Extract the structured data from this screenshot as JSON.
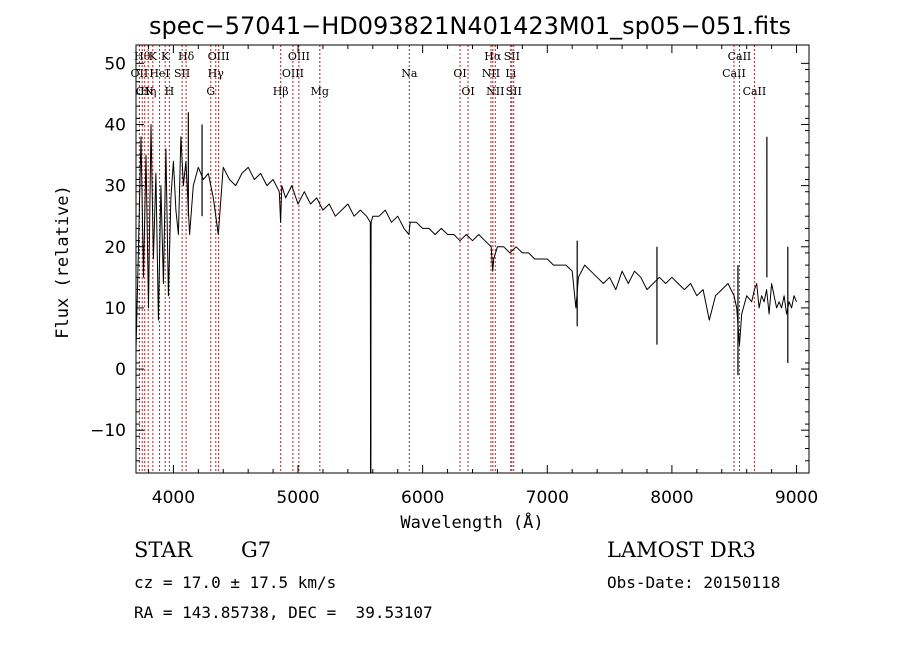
{
  "chart_data": {
    "type": "line",
    "title": "spec−57041−HD093821N401423M01_sp05−051.fits",
    "xlabel": "Wavelength (Å)",
    "ylabel": "Flux (relative)",
    "xlim": [
      3700,
      9100
    ],
    "ylim": [
      -17,
      53
    ],
    "grid": false,
    "x_ticks": [
      {
        "value": 4000,
        "label": "4000"
      },
      {
        "value": 5000,
        "label": "5000"
      },
      {
        "value": 6000,
        "label": "6000"
      },
      {
        "value": 7000,
        "label": "7000"
      },
      {
        "value": 8000,
        "label": "8000"
      },
      {
        "value": 9000,
        "label": "9000"
      }
    ],
    "y_ticks": [
      {
        "value": 50,
        "label": "50"
      },
      {
        "value": 40,
        "label": "40"
      },
      {
        "value": 30,
        "label": "30"
      },
      {
        "value": 20,
        "label": "20"
      },
      {
        "value": 10,
        "label": "10"
      },
      {
        "value": 0,
        "label": "0"
      },
      {
        "value": -10,
        "label": "−10"
      }
    ],
    "series": [
      {
        "name": "flux",
        "color": "#000000",
        "x": [
          3700,
          3720,
          3740,
          3760,
          3780,
          3800,
          3820,
          3840,
          3860,
          3880,
          3900,
          3920,
          3940,
          3960,
          3980,
          4000,
          4020,
          4040,
          4060,
          4080,
          4100,
          4130,
          4160,
          4200,
          4240,
          4280,
          4320,
          4360,
          4400,
          4450,
          4500,
          4550,
          4600,
          4650,
          4700,
          4750,
          4800,
          4850,
          4860,
          4870,
          4900,
          4950,
          5000,
          5050,
          5100,
          5150,
          5200,
          5250,
          5300,
          5350,
          5400,
          5450,
          5500,
          5550,
          5580,
          5582,
          5584,
          5586,
          5600,
          5650,
          5700,
          5750,
          5800,
          5850,
          5890,
          5900,
          5950,
          6000,
          6050,
          6100,
          6150,
          6200,
          6250,
          6300,
          6350,
          6400,
          6450,
          6500,
          6550,
          6562,
          6570,
          6600,
          6650,
          6700,
          6750,
          6800,
          6850,
          6900,
          6950,
          7000,
          7050,
          7100,
          7150,
          7200,
          7230,
          7250,
          7300,
          7350,
          7400,
          7450,
          7500,
          7550,
          7600,
          7650,
          7700,
          7750,
          7800,
          7850,
          7900,
          7950,
          8000,
          8050,
          8100,
          8150,
          8200,
          8250,
          8300,
          8350,
          8400,
          8450,
          8498,
          8520,
          8542,
          8560,
          8600,
          8640,
          8662,
          8680,
          8700,
          8720,
          8740,
          8760,
          8780,
          8800,
          8820,
          8840,
          8860,
          8880,
          8900,
          8920,
          8940,
          8960,
          8980,
          9000
        ],
        "y": [
          3,
          20,
          38,
          15,
          35,
          10,
          40,
          18,
          32,
          8,
          30,
          14,
          36,
          12,
          28,
          34,
          26,
          22,
          38,
          30,
          34,
          22,
          30,
          33,
          31,
          32,
          28,
          22,
          33,
          31,
          30,
          32,
          33,
          31,
          32,
          30,
          31,
          29,
          24,
          30,
          28,
          30,
          27,
          29,
          27,
          28,
          26,
          27,
          25,
          26,
          27,
          25,
          26,
          25,
          24,
          -17,
          -17,
          24,
          25,
          25,
          26,
          24,
          25,
          23,
          22,
          24,
          24,
          23,
          23,
          22,
          23,
          22,
          22,
          21,
          22,
          21,
          22,
          21,
          20,
          16,
          18,
          20,
          20,
          19,
          20,
          19,
          19,
          18,
          18,
          18,
          17,
          17,
          17,
          16,
          10,
          15,
          17,
          16,
          15,
          14,
          15,
          13,
          16,
          14,
          16,
          15,
          13,
          14,
          15,
          14,
          15,
          14,
          13,
          14,
          12,
          13,
          8,
          12,
          13,
          14,
          12,
          10,
          4,
          9,
          12,
          11,
          13,
          14,
          10,
          12,
          11,
          13,
          9,
          14,
          12,
          10,
          11,
          10,
          12,
          9,
          11,
          10,
          12,
          11
        ]
      },
      {
        "name": "spikes",
        "color": "#000000",
        "segments": [
          {
            "x": 4120,
            "y1": 25,
            "y2": 42
          },
          {
            "x": 4230,
            "y1": 25,
            "y2": 40
          },
          {
            "x": 5583,
            "y1": -17,
            "y2": 24
          },
          {
            "x": 7240,
            "y1": 7,
            "y2": 21
          },
          {
            "x": 7880,
            "y1": 4,
            "y2": 20
          },
          {
            "x": 8530,
            "y1": -1,
            "y2": 17
          },
          {
            "x": 8762,
            "y1": 15,
            "y2": 38
          },
          {
            "x": 8930,
            "y1": 1,
            "y2": 20
          }
        ]
      }
    ],
    "line_markers": [
      {
        "x": 3727,
        "label": "OII",
        "row": 2
      },
      {
        "x": 3750,
        "label": "Hθ",
        "row": 0
      },
      {
        "x": 3770,
        "label": "CN",
        "row": 3
      },
      {
        "x": 3798,
        "label": "Hη",
        "row": 3
      },
      {
        "x": 3835,
        "label": "K",
        "row": 0
      },
      {
        "x": 3889,
        "label": "HeI",
        "row": 1
      },
      {
        "x": 3934,
        "label": "K",
        "row": 0
      },
      {
        "x": 3968,
        "label": "H",
        "row": 3
      },
      {
        "x": 4070,
        "label": "SII",
        "row": 1
      },
      {
        "x": 4102,
        "label": "Hδ",
        "row": 0
      },
      {
        "x": 4300,
        "label": "G",
        "row": 3
      },
      {
        "x": 4340,
        "label": "Hγ",
        "row": 2
      },
      {
        "x": 4363,
        "label": "OIII",
        "row": 0
      },
      {
        "x": 4861,
        "label": "Hβ",
        "row": 3
      },
      {
        "x": 4959,
        "label": "OIII",
        "row": 2
      },
      {
        "x": 5007,
        "label": "OIII",
        "row": 0
      },
      {
        "x": 5175,
        "label": "Mg",
        "row": 3
      },
      {
        "x": 5893,
        "label": "Na",
        "row": 2
      },
      {
        "x": 6300,
        "label": "OI",
        "row": 1
      },
      {
        "x": 6364,
        "label": "OI",
        "row": 3
      },
      {
        "x": 6548,
        "label": "NII",
        "row": 2
      },
      {
        "x": 6563,
        "label": "Hα",
        "row": 0
      },
      {
        "x": 6583,
        "label": "NII",
        "row": 3
      },
      {
        "x": 6707,
        "label": "Li",
        "row": 2
      },
      {
        "x": 6716,
        "label": "SII",
        "row": 0
      },
      {
        "x": 6731,
        "label": "SII",
        "row": 3
      },
      {
        "x": 8498,
        "label": "CaII",
        "row": 2
      },
      {
        "x": 8542,
        "label": "CaII",
        "row": 0
      },
      {
        "x": 8662,
        "label": "CaII",
        "row": 3
      }
    ],
    "line_color": "#b22222"
  },
  "info": {
    "object_class": "STAR",
    "subclass": "G7",
    "redshift": "cz = 17.0 ± 17.5 km/s",
    "coordinates": "RA = 143.85738, DEC =  39.53107",
    "survey": "LAMOST DR3",
    "obs_date": "Obs-Date: 20150118"
  }
}
